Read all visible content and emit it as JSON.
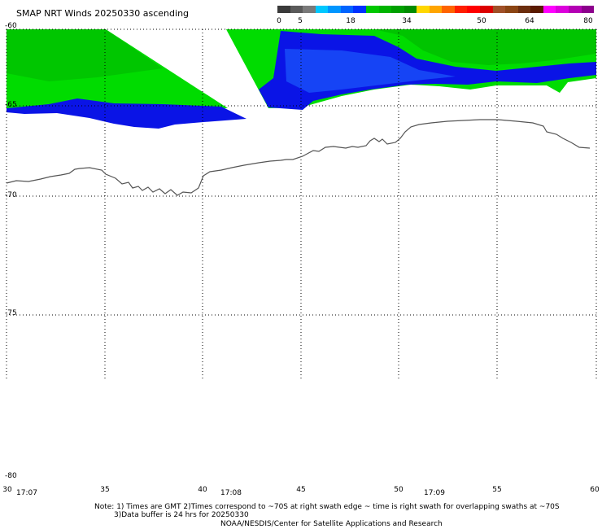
{
  "title": "SMAP NRT Winds 20250330 ascending",
  "colorbar": {
    "labels": [
      "0",
      "5",
      "18",
      "34",
      "50",
      "64",
      "80"
    ],
    "colors": [
      "#3a3a3a",
      "#5a5a5a",
      "#7a7a7a",
      "#00c8ff",
      "#0096ff",
      "#0064ff",
      "#0032ff",
      "#00c800",
      "#00b400",
      "#00a000",
      "#008c00",
      "#ffd700",
      "#ffa500",
      "#ff6400",
      "#ff1e00",
      "#ff0000",
      "#dc0000",
      "#a05028",
      "#8b4513",
      "#6b2e0e",
      "#5a1a00",
      "#ff00ff",
      "#dc00dc",
      "#b400b4",
      "#8c008c"
    ]
  },
  "lat_labels": [
    "-60",
    "-65",
    "-70",
    "-75",
    "-80"
  ],
  "lon_labels": [
    "30",
    "35",
    "40",
    "45",
    "50",
    "55",
    "60"
  ],
  "time_labels": [
    "17:07",
    "17:08",
    "17:09"
  ],
  "notes": {
    "line1": "Note: 1) Times are GMT 2)Times correspond to ~70S at right swath edge ~ time is right swath for overlapping swaths at ~70S",
    "line2": "3)Data buffer is 24 hrs for 20250330",
    "line3": "NOAA/NESDIS/Center for Satellite Applications and Research"
  }
}
